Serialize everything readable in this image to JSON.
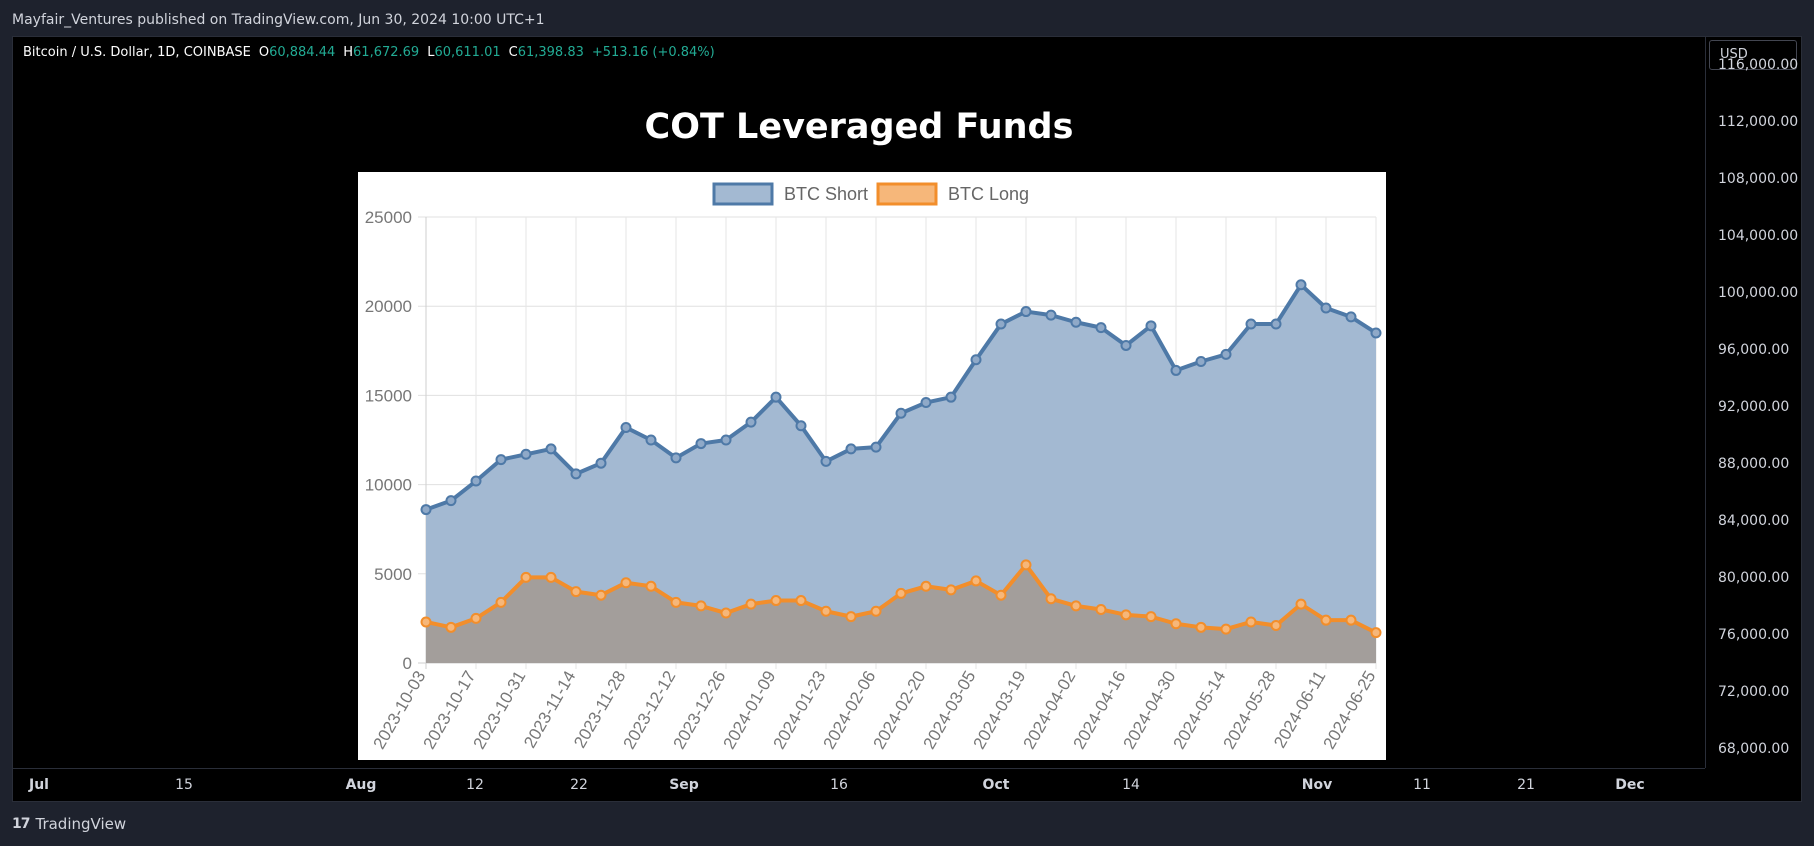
{
  "header": {
    "publish_line": "Mayfair_Ventures published on TradingView.com, Jun 30, 2024 10:00 UTC+1"
  },
  "symbol": {
    "name": "Bitcoin / U.S. Dollar, 1D, COINBASE",
    "o_label": "O",
    "o_value": "60,884.44",
    "h_label": "H",
    "h_value": "61,672.69",
    "l_label": "L",
    "l_value": "60,611.01",
    "c_label": "C",
    "c_value": "61,398.83",
    "change": "+513.16 (+0.84%)"
  },
  "overlay_title": "COT Leveraged Funds",
  "currency_button": "USD",
  "price_axis": [
    "116,000.00",
    "112,000.00",
    "108,000.00",
    "104,000.00",
    "100,000.00",
    "96,000.00",
    "92,000.00",
    "88,000.00",
    "84,000.00",
    "80,000.00",
    "76,000.00",
    "72,000.00",
    "68,000.00"
  ],
  "time_axis": [
    {
      "label": "Jul",
      "bold": true
    },
    {
      "label": "15",
      "bold": false
    },
    {
      "label": "Aug",
      "bold": true
    },
    {
      "label": "12",
      "bold": false
    },
    {
      "label": "22",
      "bold": false
    },
    {
      "label": "Sep",
      "bold": true
    },
    {
      "label": "16",
      "bold": false
    },
    {
      "label": "Oct",
      "bold": true
    },
    {
      "label": "14",
      "bold": false
    },
    {
      "label": "Nov",
      "bold": true
    },
    {
      "label": "11",
      "bold": false
    },
    {
      "label": "21",
      "bold": false
    },
    {
      "label": "Dec",
      "bold": true
    }
  ],
  "footer": {
    "brand": "TradingView",
    "logo_text": "17"
  },
  "colors": {
    "short": "#4e79a7",
    "short_fill": "#a3b9d2",
    "long": "#f28e2b",
    "long_fill": "#a39e9b"
  },
  "chart_data": {
    "type": "area",
    "title": "",
    "ylim": [
      0,
      25000
    ],
    "y_ticks": [
      0,
      5000,
      10000,
      15000,
      20000,
      25000
    ],
    "legend_position": "top-center",
    "x": [
      "2023-10-03",
      "2023-10-10",
      "2023-10-17",
      "2023-10-24",
      "2023-10-31",
      "2023-11-07",
      "2023-11-14",
      "2023-11-21",
      "2023-11-28",
      "2023-12-05",
      "2023-12-12",
      "2023-12-19",
      "2023-12-26",
      "2024-01-02",
      "2024-01-09",
      "2024-01-16",
      "2024-01-23",
      "2024-01-30",
      "2024-02-06",
      "2024-02-13",
      "2024-02-20",
      "2024-02-27",
      "2024-03-05",
      "2024-03-12",
      "2024-03-19",
      "2024-03-26",
      "2024-04-02",
      "2024-04-09",
      "2024-04-16",
      "2024-04-23",
      "2024-04-30",
      "2024-05-07",
      "2024-05-14",
      "2024-05-21",
      "2024-05-28",
      "2024-06-04",
      "2024-06-11",
      "2024-06-18",
      "2024-06-25"
    ],
    "x_tick_labels": [
      "2023-10-03",
      "2023-10-17",
      "2023-10-31",
      "2023-11-14",
      "2023-11-28",
      "2023-12-12",
      "2023-12-26",
      "2024-01-09",
      "2024-01-23",
      "2024-02-06",
      "2024-02-20",
      "2024-03-05",
      "2024-03-19",
      "2024-04-02",
      "2024-04-16",
      "2024-04-30",
      "2024-05-14",
      "2024-05-28",
      "2024-06-11",
      "2024-06-25"
    ],
    "series": [
      {
        "name": "BTC Short",
        "values": [
          8600,
          9100,
          10200,
          11400,
          11700,
          12000,
          10600,
          11200,
          13200,
          12500,
          11500,
          12300,
          12500,
          13500,
          14900,
          13300,
          11300,
          12000,
          12100,
          14000,
          14600,
          14900,
          17000,
          19000,
          19700,
          19500,
          19100,
          18800,
          17800,
          18900,
          16400,
          16900,
          17300,
          19000,
          19000,
          21200,
          19900,
          19400,
          18500
        ]
      },
      {
        "name": "BTC Long",
        "values": [
          2300,
          2000,
          2500,
          3400,
          4800,
          4800,
          4000,
          3800,
          4500,
          4300,
          3400,
          3200,
          2800,
          3300,
          3500,
          3500,
          2900,
          2600,
          2900,
          3900,
          4300,
          4100,
          4600,
          3800,
          5500,
          3600,
          3200,
          3000,
          2700,
          2600,
          2200,
          2000,
          1900,
          2300,
          2100,
          3300,
          2400,
          2400,
          1700
        ]
      }
    ]
  }
}
